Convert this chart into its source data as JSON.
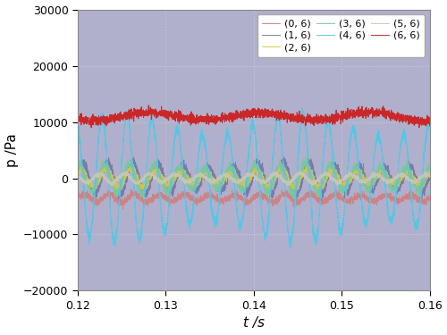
{
  "title": "",
  "xlabel": "t /s",
  "ylabel": "p /Pa",
  "xlim": [
    0.12,
    0.16
  ],
  "ylim": [
    -20000,
    30000
  ],
  "yticks": [
    -20000,
    -10000,
    0,
    10000,
    20000,
    30000
  ],
  "xticks": [
    0.12,
    0.13,
    0.14,
    0.15,
    0.16
  ],
  "bg_color": "#b0b0cc",
  "legend_labels": [
    "(0, 6)",
    "(1, 6)",
    "(2, 6)",
    "(3, 6)",
    "(4, 6)",
    "(5, 6)",
    "(6, 6)"
  ],
  "line_colors": [
    "#d08080",
    "#7878a8",
    "#d4c840",
    "#78c8a0",
    "#50c8e8",
    "#c8c8b0",
    "#cc2020"
  ],
  "line_params": [
    {
      "mean": -3500,
      "amp": 600,
      "freq": 350,
      "noise": 300,
      "phase": 0.0,
      "mod_freq": 50,
      "mod_amp": 200
    },
    {
      "mean": 0,
      "amp": 2500,
      "freq": 350,
      "noise": 400,
      "phase": 0.3,
      "mod_freq": 50,
      "mod_amp": 500
    },
    {
      "mean": 0,
      "amp": 1400,
      "freq": 350,
      "noise": 300,
      "phase": 0.8,
      "mod_freq": 50,
      "mod_amp": 300
    },
    {
      "mean": 0,
      "amp": 2200,
      "freq": 350,
      "noise": 400,
      "phase": 1.2,
      "mod_freq": 50,
      "mod_amp": 400
    },
    {
      "mean": 0,
      "amp": 9500,
      "freq": 350,
      "noise": 500,
      "phase": 1.8,
      "mod_freq": 50,
      "mod_amp": 1500
    },
    {
      "mean": 0,
      "amp": 700,
      "freq": 350,
      "noise": 200,
      "phase": 2.4,
      "mod_freq": 50,
      "mod_amp": 100
    },
    {
      "mean": 11000,
      "amp": 700,
      "freq": 80,
      "noise": 400,
      "phase": 0.0,
      "mod_freq": 20,
      "mod_amp": 300
    }
  ],
  "n_points": 3000,
  "grid_color": "#c8c8dc",
  "legend_ncol": 3,
  "figsize": [
    5.0,
    3.75
  ],
  "dpi": 100
}
